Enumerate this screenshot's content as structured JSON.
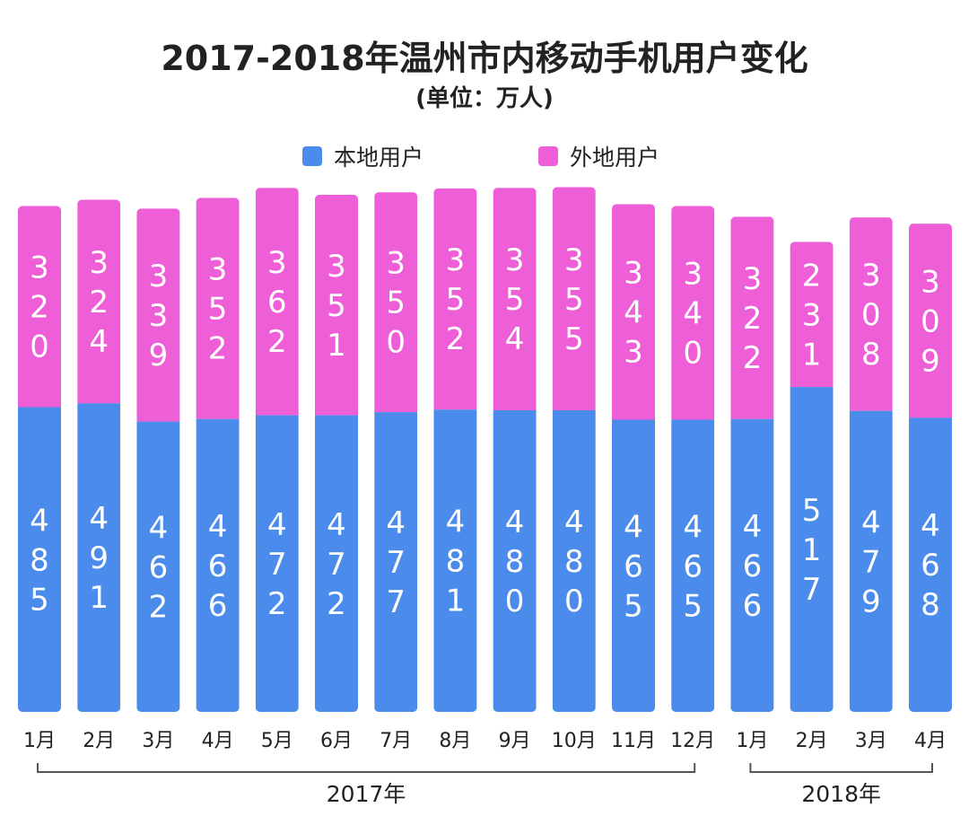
{
  "colors": {
    "local": "#4b8beb",
    "nonlocal": "#ee5fd7",
    "bracket": "#555555"
  },
  "chart_data": {
    "type": "bar",
    "stacked": true,
    "title": "2017-2018年温州市内移动手机用户变化",
    "subtitle": "(单位：万人)",
    "categories": [
      "1月",
      "2月",
      "3月",
      "4月",
      "5月",
      "6月",
      "7月",
      "8月",
      "9月",
      "10月",
      "11月",
      "12月",
      "1月",
      "2月",
      "3月",
      "4月"
    ],
    "series": [
      {
        "name": "本地用户",
        "color": "#4b8beb",
        "values": [
          485,
          491,
          462,
          466,
          472,
          472,
          477,
          481,
          480,
          480,
          465,
          465,
          466,
          517,
          479,
          468
        ]
      },
      {
        "name": "外地用户",
        "color": "#ee5fd7",
        "values": [
          320,
          324,
          339,
          352,
          362,
          351,
          350,
          352,
          354,
          355,
          343,
          340,
          322,
          231,
          308,
          309
        ]
      }
    ],
    "groups": [
      {
        "label": "2017年",
        "from": 0,
        "to": 11
      },
      {
        "label": "2018年",
        "from": 12,
        "to": 15
      }
    ],
    "legend": "top-center",
    "grid": false
  }
}
